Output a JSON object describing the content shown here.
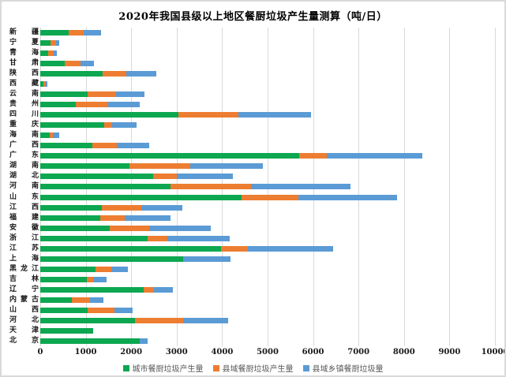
{
  "chart_data": {
    "type": "bar",
    "orientation": "horizontal",
    "stacked": true,
    "title": "2020年我国县级以上地区餐厨垃圾产生量测算（吨/日）",
    "xlabel": "",
    "ylabel": "",
    "xlim": [
      0,
      10000
    ],
    "x_ticks": [
      0,
      1000,
      2000,
      3000,
      4000,
      5000,
      6000,
      7000,
      8000,
      9000,
      10000
    ],
    "grid": "vertical-gridlines-on",
    "legend_position": "bottom",
    "gridline_color": "#d9d9d9",
    "categories_top_to_bottom": [
      "新疆",
      "宁夏",
      "青海",
      "甘肃",
      "陕西",
      "西藏",
      "云南",
      "贵州",
      "四川",
      "重庆",
      "海南",
      "广西",
      "广东",
      "湖南",
      "湖北",
      "河南",
      "山东",
      "江西",
      "福建",
      "安徽",
      "浙江",
      "江苏",
      "上海",
      "黑龙江",
      "吉林",
      "辽宁",
      "内蒙古",
      "山西",
      "河北",
      "天津",
      "北京"
    ],
    "series": [
      {
        "name": "城市餐厨垃圾产生量",
        "color": "#0ca750",
        "values": [
          620,
          230,
          170,
          530,
          1370,
          70,
          1040,
          780,
          3030,
          1400,
          210,
          1140,
          5690,
          1970,
          2480,
          2870,
          4420,
          1360,
          1320,
          1520,
          2360,
          3980,
          3150,
          1220,
          1020,
          2270,
          690,
          1050,
          2080,
          1160,
          2180
        ]
      },
      {
        "name": "县域餐厨垃圾产生量",
        "color": "#ed7d31",
        "values": [
          340,
          120,
          130,
          350,
          530,
          40,
          630,
          720,
          1330,
          180,
          60,
          550,
          610,
          1320,
          520,
          1760,
          1260,
          860,
          530,
          880,
          430,
          590,
          0,
          350,
          160,
          230,
          410,
          590,
          1070,
          0,
          0
        ]
      },
      {
        "name": "县域乡镇餐厨垃圾量",
        "color": "#5b9bd5",
        "values": [
          380,
          60,
          60,
          300,
          650,
          40,
          630,
          680,
          1590,
          530,
          140,
          700,
          2110,
          1600,
          1240,
          2200,
          2160,
          900,
          1010,
          1350,
          1370,
          1870,
          1030,
          350,
          270,
          410,
          290,
          390,
          980,
          0,
          180
        ]
      }
    ]
  }
}
